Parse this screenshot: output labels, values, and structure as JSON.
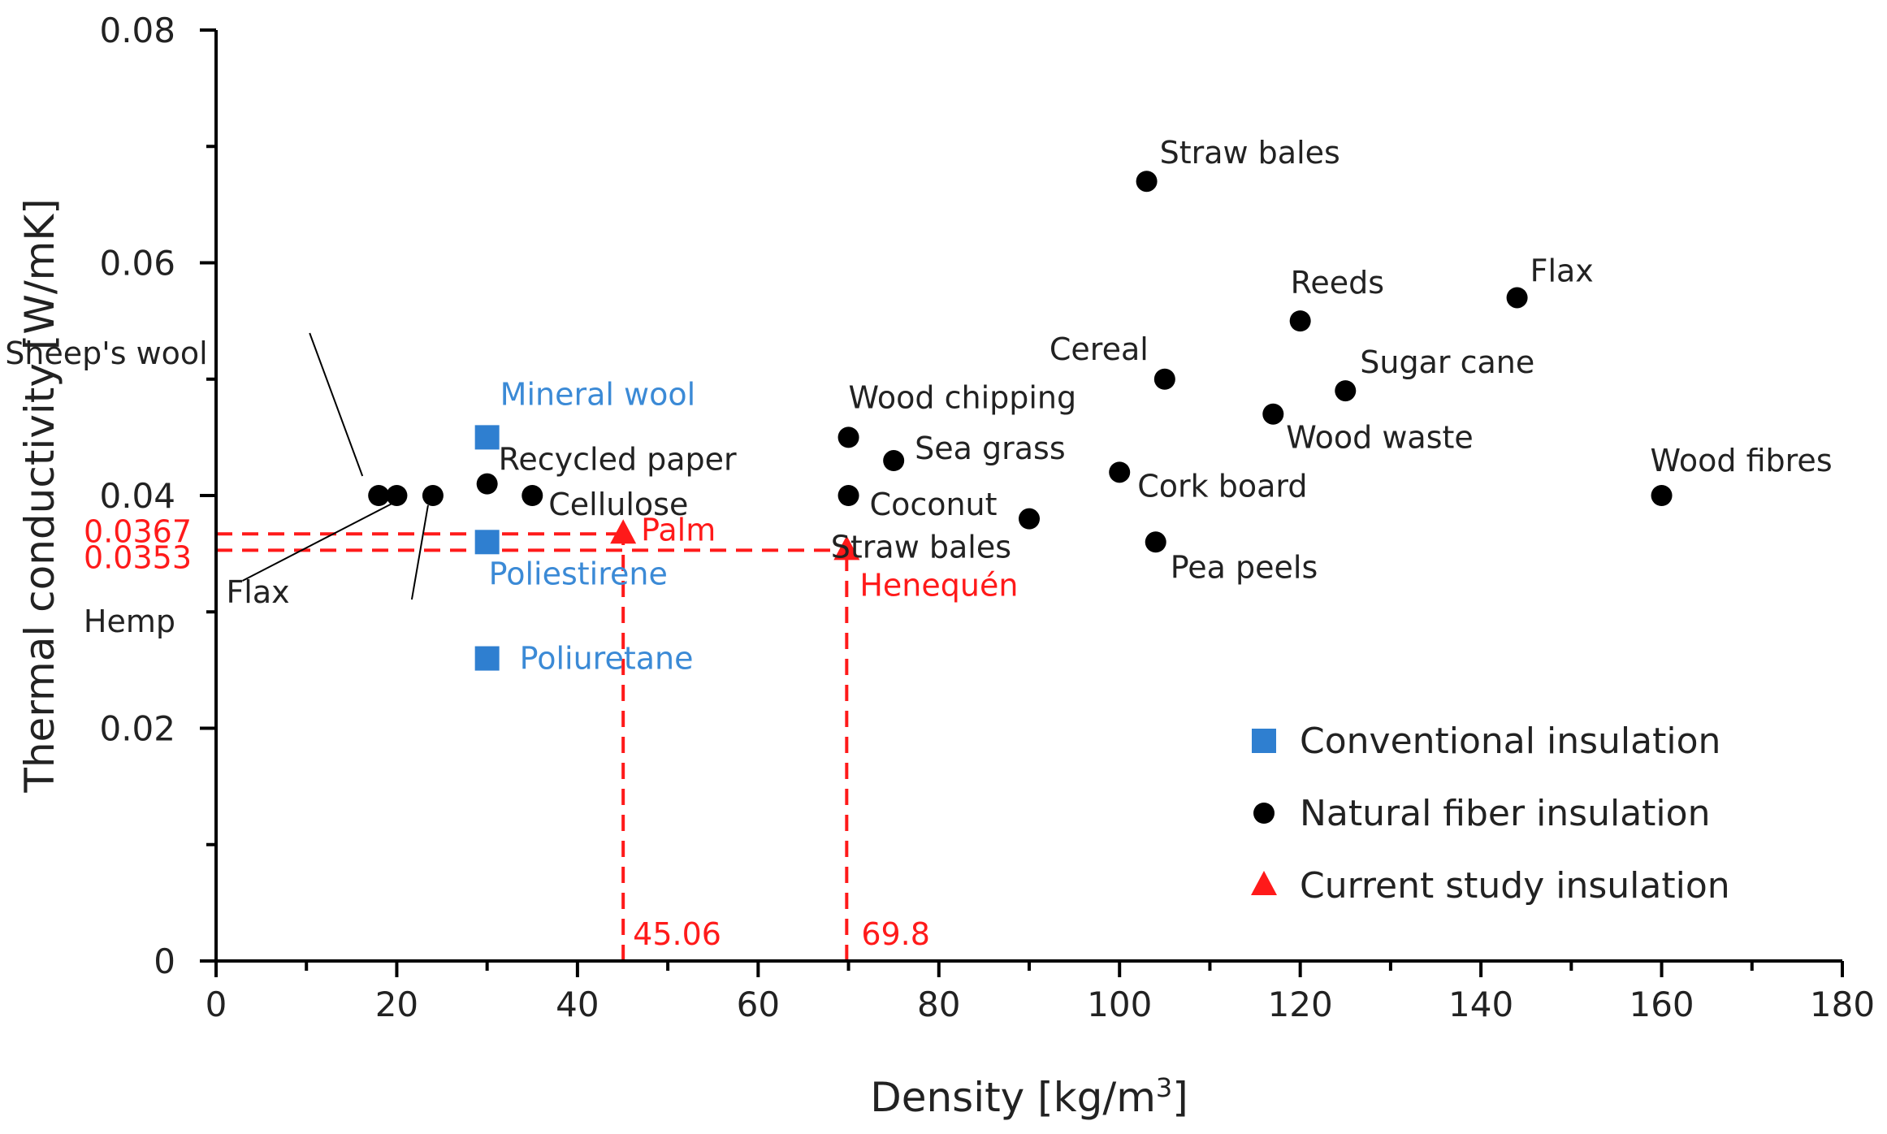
{
  "chart_data": {
    "type": "scatter",
    "title": "",
    "xlabel": "Density [kg/m",
    "xlabel_sup": "3",
    "xlabel_end": "]",
    "ylabel": "Thermal conductivity [W/mK]",
    "xlim": [
      0,
      180
    ],
    "ylim": [
      0,
      0.08
    ],
    "x_ticks": [
      0,
      20,
      40,
      60,
      80,
      100,
      120,
      140,
      160,
      180
    ],
    "x_tick_labels": [
      "0",
      "20",
      "40",
      "60",
      "80",
      "100",
      "120",
      "140",
      "160",
      "180"
    ],
    "y_ticks": [
      0,
      0.02,
      0.04,
      0.06,
      0.08
    ],
    "y_tick_labels": [
      "0",
      "0.02",
      "0.04",
      "0.06",
      "0.08"
    ],
    "grid": false,
    "legend_position": "bottom-right",
    "colors": {
      "conventional": "#2f7fd0",
      "natural": "#000000",
      "current": "#ff1a1a",
      "conventional_text": "#3b8ad6"
    },
    "series": [
      {
        "name": "Conventional insulation",
        "marker": "square",
        "points": [
          {
            "label": "Mineral wool",
            "x": 30,
            "y": 0.045
          },
          {
            "label": "Poliestirene",
            "x": 30,
            "y": 0.036
          },
          {
            "label": "Poliuretane",
            "x": 30,
            "y": 0.026
          }
        ]
      },
      {
        "name": "Natural fiber insulation",
        "marker": "circle",
        "points": [
          {
            "label": "Sheep's wool",
            "x": 18,
            "y": 0.04
          },
          {
            "label": "Flax",
            "x": 20,
            "y": 0.04
          },
          {
            "label": "Hemp",
            "x": 24,
            "y": 0.04
          },
          {
            "label": "Recycled paper",
            "x": 30,
            "y": 0.041
          },
          {
            "label": "Cellulose",
            "x": 35,
            "y": 0.04
          },
          {
            "label": "Wood chipping",
            "x": 70,
            "y": 0.045
          },
          {
            "label": "Coconut",
            "x": 70,
            "y": 0.04
          },
          {
            "label": "Sea grass",
            "x": 75,
            "y": 0.043
          },
          {
            "label": "Straw bales",
            "x": 90,
            "y": 0.038
          },
          {
            "label": "Straw bales",
            "x": 103,
            "y": 0.067
          },
          {
            "label": "Cork board",
            "x": 100,
            "y": 0.042
          },
          {
            "label": "Pea peels",
            "x": 104,
            "y": 0.036
          },
          {
            "label": "Cereal",
            "x": 105,
            "y": 0.05
          },
          {
            "label": "Wood waste",
            "x": 117,
            "y": 0.047
          },
          {
            "label": "Reeds",
            "x": 120,
            "y": 0.055
          },
          {
            "label": "Sugar cane",
            "x": 125,
            "y": 0.049
          },
          {
            "label": "Flax",
            "x": 144,
            "y": 0.057
          },
          {
            "label": "Wood fibres",
            "x": 160,
            "y": 0.04
          }
        ]
      },
      {
        "name": "Current study insulation",
        "marker": "triangle",
        "points": [
          {
            "label": "Palm",
            "x": 45.06,
            "y": 0.0367
          },
          {
            "label": "Henequén",
            "x": 69.8,
            "y": 0.0353
          }
        ]
      }
    ],
    "reference_labels": {
      "palm_x": "45.06",
      "henequen_x": "69.8",
      "palm_y": "0.0367",
      "henequen_y": "0.0353"
    }
  }
}
